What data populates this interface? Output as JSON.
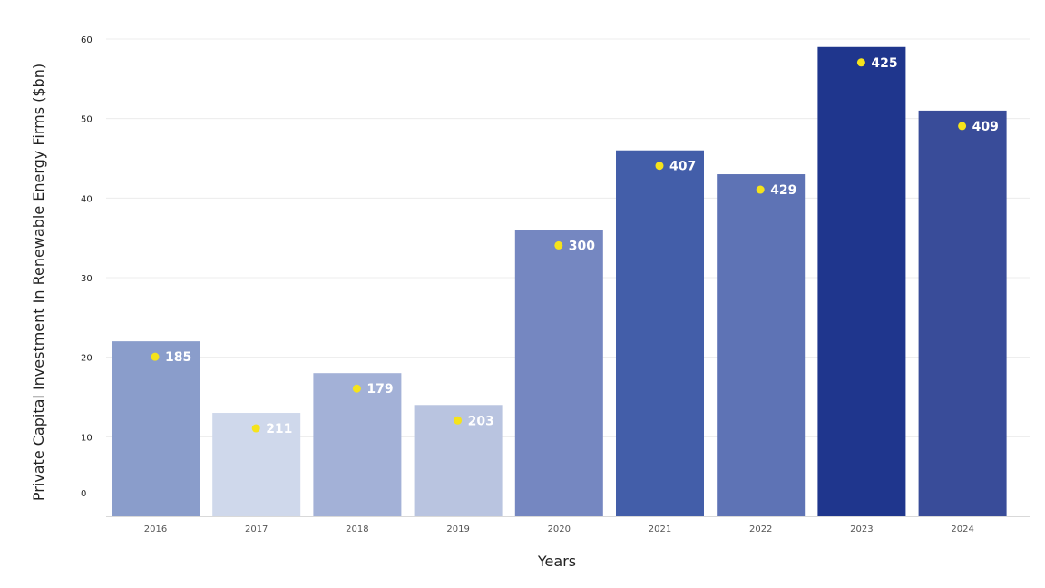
{
  "chart_data": {
    "type": "bar",
    "xlabel": "Years",
    "ylabel": "Private Capital Investment In Renewable Energy Firms ($bn)",
    "ylim": [
      0,
      60
    ],
    "yticks": [
      0,
      10,
      20,
      30,
      40,
      50,
      60
    ],
    "grid": true,
    "categories": [
      "2016",
      "2017",
      "2018",
      "2019",
      "2020",
      "2021",
      "2022",
      "2023",
      "2024"
    ],
    "values": [
      22,
      13,
      18,
      14,
      36,
      46,
      43,
      59,
      51
    ],
    "data_labels": [
      "185",
      "211",
      "179",
      "203",
      "300",
      "407",
      "429",
      "425",
      "409"
    ],
    "bar_colors": [
      "#8a9dcb",
      "#cfd8eb",
      "#a3b1d7",
      "#b9c4e0",
      "#7587c1",
      "#435ea9",
      "#5e73b5",
      "#1f368d",
      "#394c99"
    ],
    "marker_color": "#f5e31b"
  }
}
